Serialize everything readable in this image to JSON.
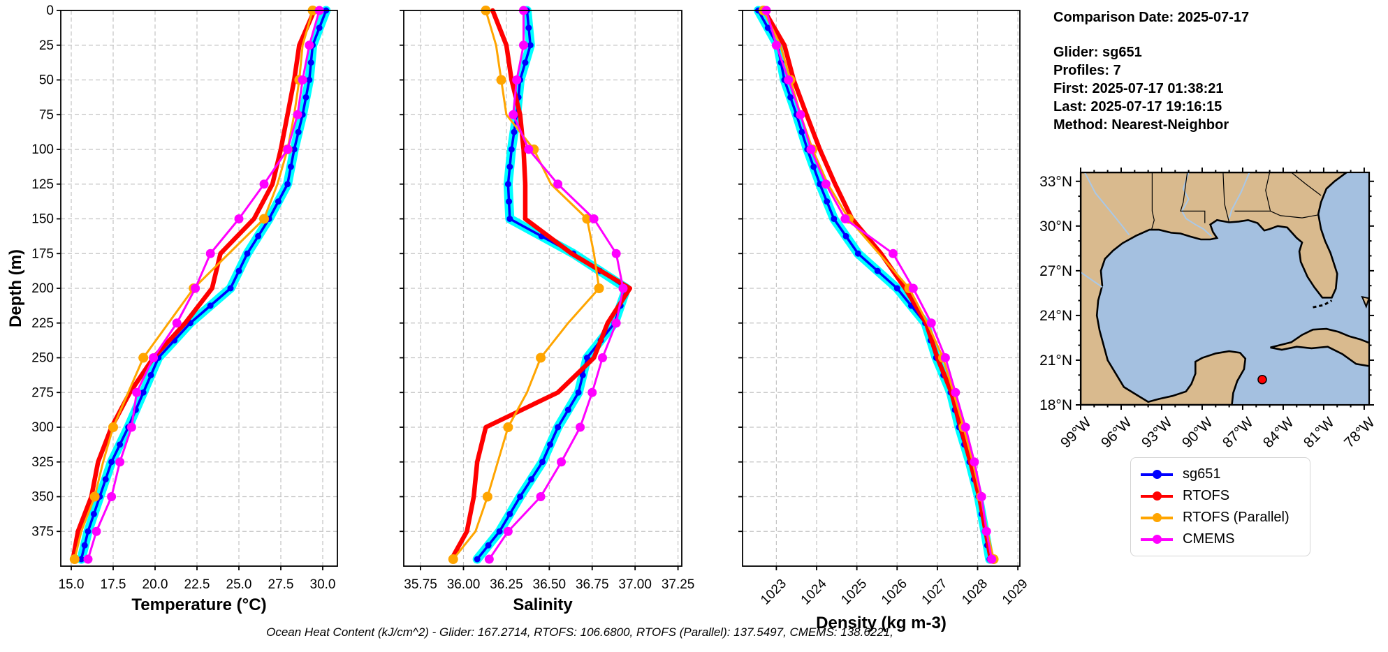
{
  "info_panel": {
    "lines": [
      "Comparison Date: 2025-07-17",
      "",
      "Glider: sg651",
      "Profiles: 7",
      "First: 2025-07-17 01:38:21",
      "Last: 2025-07-17 19:16:15",
      "Method: Nearest-Neighbor"
    ]
  },
  "footer": {
    "ohc_text": "Ocean Heat Content (kJ/cm^2) - Glider: 167.2714,  RTOFS: 106.6800,  RTOFS (Parallel): 137.5497,  CMEMS: 138.6221,"
  },
  "legend": {
    "entries": [
      {
        "label": "sg651",
        "color": "#0000ff"
      },
      {
        "label": "RTOFS",
        "color": "#ff0000"
      },
      {
        "label": "RTOFS (Parallel)",
        "color": "#ffa500"
      },
      {
        "label": "CMEMS",
        "color": "#ff00ff"
      }
    ]
  },
  "colors": {
    "glider": "#0000ff",
    "glider_envelope": "#00ffff",
    "rtofs": "#ff0000",
    "rtofs_parallel": "#ffa500",
    "cmems": "#ff00ff",
    "grid": "#c3c3c3",
    "axis": "#000000"
  },
  "map": {
    "lat_labels": [
      "33°N",
      "30°N",
      "27°N",
      "24°N",
      "21°N",
      "18°N"
    ],
    "lat_values": [
      33,
      30,
      27,
      24,
      21,
      18
    ],
    "lon_labels": [
      "99°W",
      "96°W",
      "93°W",
      "90°W",
      "87°W",
      "84°W",
      "81°W",
      "78°W"
    ],
    "lon_values": [
      -99,
      -96,
      -93,
      -90,
      -87,
      -84,
      -81,
      -78
    ],
    "land_color": "#d9ba8e",
    "ocean_color": "#a4c0e0",
    "river_color": "#a9c8e8",
    "marker": {
      "lon": -85.55,
      "lat": 19.7,
      "color": "#ff0000"
    }
  },
  "chart_data": [
    {
      "type": "line",
      "xlabel": "Temperature (°C)",
      "ylabel": "Depth (m)",
      "xlim": [
        14.375,
        30.875
      ],
      "ylim": [
        0,
        400
      ],
      "xticks": [
        15.0,
        17.5,
        20.0,
        22.5,
        25.0,
        27.5,
        30.0
      ],
      "xtick_labels": [
        "15.0",
        "17.5",
        "20.0",
        "22.5",
        "25.0",
        "27.5",
        "30.0"
      ],
      "ytick_step": 25,
      "rotate_xticks": false,
      "show_ytick_labels": true,
      "depths": [
        0,
        25,
        50,
        75,
        100,
        125,
        150,
        175,
        200,
        225,
        250,
        275,
        300,
        325,
        350,
        375,
        395
      ],
      "series": [
        {
          "name": "sg651",
          "values": [
            30.2,
            29.4,
            29.2,
            28.8,
            28.3,
            27.9,
            26.8,
            25.5,
            24.5,
            22.1,
            20.2,
            19.3,
            18.4,
            17.4,
            16.7,
            16.0,
            15.6
          ]
        },
        {
          "name": "RTOFS",
          "values": [
            29.5,
            28.6,
            28.3,
            27.9,
            27.5,
            27.0,
            25.9,
            23.9,
            23.4,
            21.8,
            19.9,
            18.5,
            17.4,
            16.6,
            16.2,
            15.4,
            15.1
          ]
        },
        {
          "name": "RTOFS (Parallel)",
          "values": [
            29.4,
            28.8,
            28.6,
            28.3,
            27.9,
            27.3,
            26.5,
            24.4,
            22.3,
            20.8,
            19.3,
            18.4,
            17.5,
            16.9,
            16.4,
            15.6,
            15.2
          ]
        },
        {
          "name": "CMEMS",
          "values": [
            29.8,
            29.2,
            28.8,
            28.5,
            27.9,
            26.5,
            25.0,
            23.3,
            22.4,
            21.3,
            19.9,
            18.9,
            18.6,
            17.9,
            17.4,
            16.5,
            16.0
          ]
        }
      ]
    },
    {
      "type": "line",
      "xlabel": "Salinity",
      "ylabel": "",
      "xlim": [
        35.652,
        37.272
      ],
      "ylim": [
        0,
        400
      ],
      "xticks": [
        35.75,
        36.0,
        36.25,
        36.5,
        36.75,
        37.0,
        37.25
      ],
      "xtick_labels": [
        "35.75",
        "36.00",
        "36.25",
        "36.50",
        "36.75",
        "37.00",
        "37.25"
      ],
      "ytick_step": 25,
      "rotate_xticks": false,
      "show_ytick_labels": false,
      "depths": [
        0,
        25,
        50,
        75,
        100,
        125,
        150,
        175,
        200,
        225,
        250,
        275,
        300,
        325,
        350,
        375,
        395
      ],
      "series": [
        {
          "name": "sg651",
          "values": [
            36.37,
            36.39,
            36.33,
            36.31,
            36.28,
            36.26,
            36.27,
            36.64,
            36.95,
            36.88,
            36.72,
            36.67,
            36.55,
            36.46,
            36.33,
            36.21,
            36.08
          ]
        },
        {
          "name": "RTOFS",
          "values": [
            36.17,
            36.25,
            36.28,
            36.33,
            36.35,
            36.36,
            36.36,
            36.63,
            36.97,
            36.84,
            36.76,
            36.55,
            36.13,
            36.08,
            36.06,
            36.02,
            35.93
          ]
        },
        {
          "name": "RTOFS (Parallel)",
          "values": [
            36.13,
            36.19,
            36.22,
            36.25,
            36.41,
            36.51,
            36.72,
            36.76,
            36.79,
            36.61,
            36.45,
            36.37,
            36.26,
            36.2,
            36.14,
            36.07,
            35.94
          ]
        },
        {
          "name": "CMEMS",
          "values": [
            36.35,
            36.35,
            36.31,
            36.29,
            36.38,
            36.55,
            36.76,
            36.89,
            36.93,
            36.89,
            36.81,
            36.75,
            36.68,
            36.57,
            36.45,
            36.26,
            36.15
          ]
        }
      ]
    },
    {
      "type": "line",
      "xlabel": "Density (kg m-3)",
      "ylabel": "",
      "xlim": [
        1022.16,
        1029.05
      ],
      "ylim": [
        0,
        400
      ],
      "xticks": [
        1023,
        1024,
        1025,
        1026,
        1027,
        1028,
        1029
      ],
      "xtick_labels": [
        "1023",
        "1024",
        "1025",
        "1026",
        "1027",
        "1028",
        "1029"
      ],
      "ytick_step": 25,
      "rotate_xticks": true,
      "show_ytick_labels": false,
      "depths": [
        0,
        25,
        50,
        75,
        100,
        125,
        150,
        175,
        200,
        225,
        250,
        275,
        300,
        325,
        350,
        375,
        395
      ],
      "series": [
        {
          "name": "sg651",
          "values": [
            1022.55,
            1023.03,
            1023.2,
            1023.5,
            1023.77,
            1024.08,
            1024.43,
            1025.03,
            1026.0,
            1026.7,
            1026.97,
            1027.33,
            1027.54,
            1027.8,
            1028.02,
            1028.18,
            1028.3
          ]
        },
        {
          "name": "RTOFS",
          "values": [
            1022.7,
            1023.2,
            1023.43,
            1023.75,
            1024.08,
            1024.46,
            1024.88,
            1025.6,
            1026.2,
            1026.72,
            1027.0,
            1027.35,
            1027.58,
            1027.82,
            1028.04,
            1028.2,
            1028.33
          ]
        },
        {
          "name": "RTOFS (Parallel)",
          "values": [
            1022.68,
            1023.1,
            1023.35,
            1023.6,
            1023.9,
            1024.28,
            1024.8,
            1025.55,
            1026.3,
            1026.75,
            1027.14,
            1027.4,
            1027.65,
            1027.88,
            1028.08,
            1028.24,
            1028.4
          ]
        },
        {
          "name": "CMEMS",
          "values": [
            1022.75,
            1023.0,
            1023.3,
            1023.6,
            1023.86,
            1024.23,
            1024.71,
            1025.9,
            1026.4,
            1026.85,
            1027.2,
            1027.45,
            1027.7,
            1027.92,
            1028.1,
            1028.22,
            1028.35
          ]
        }
      ]
    }
  ]
}
